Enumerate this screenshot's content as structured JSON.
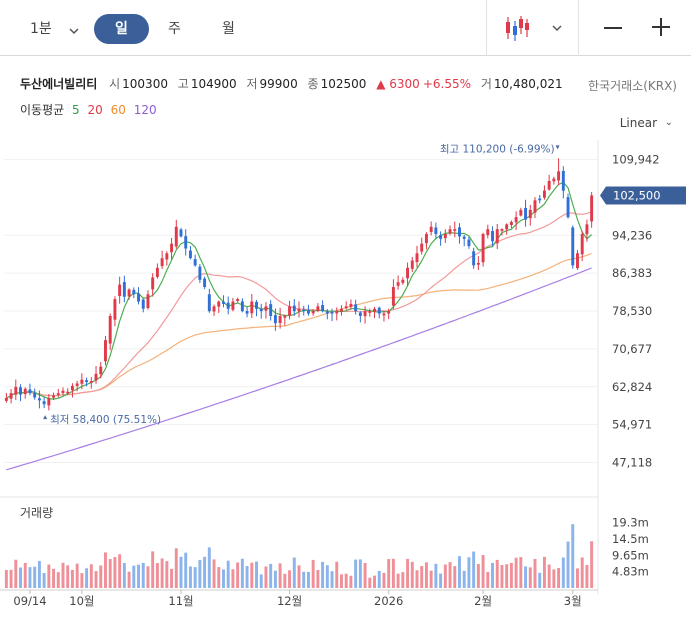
{
  "toolbar": {
    "minute_label": "1분",
    "day_label": "일",
    "week_label": "주",
    "month_label": "월",
    "active": "일"
  },
  "stock": {
    "name": "두산에너빌리티",
    "open_label": "시",
    "open": "100300",
    "high_label": "고",
    "high": "104900",
    "low_label": "저",
    "low": "99900",
    "close_label": "종",
    "close": "102500",
    "change": "▲ 6300",
    "change_pct": "+6.55%",
    "volume_label": "거",
    "volume": "10,480,021",
    "exchange": "한국거래소(KRX)"
  },
  "moving_averages": {
    "title": "이동평균",
    "items": [
      {
        "label": "5",
        "color": "#2ea043"
      },
      {
        "label": "20",
        "color": "#e0394a"
      },
      {
        "label": "60",
        "color": "#f08c28"
      },
      {
        "label": "120",
        "color": "#8b5cd6"
      }
    ]
  },
  "scale_label": "Linear",
  "colors": {
    "up": "#e0394a",
    "down": "#2f6fd6",
    "ma5": "#4caf50",
    "ma20": "#f29a9a",
    "ma60": "#f5b27a",
    "ma120": "#a77ee6",
    "vol_up": "#ef8f98",
    "vol_down": "#8ab4ea",
    "current_tag": "#3b5f99"
  },
  "chart_data": {
    "type": "candlestick",
    "title": "두산에너빌리티",
    "price_axis": {
      "ylim": [
        41000,
        114000
      ],
      "ticks": [
        "109,942",
        "94,236",
        "86,383",
        "78,530",
        "70,677",
        "62,824",
        "54,971",
        "47,118"
      ],
      "tick_values": [
        109942,
        94236,
        86383,
        78530,
        70677,
        62824,
        54971,
        47118
      ],
      "current_price_label": "102,500",
      "current_price": 102500
    },
    "x_axis": {
      "labels": [
        "09/14",
        "10월",
        "11월",
        "12월",
        "2026",
        "2월",
        "3월"
      ],
      "label_index": [
        5,
        16,
        37,
        60,
        81,
        101,
        120
      ]
    },
    "annotations": {
      "high_text": "최고 110,200 (-6.99%)",
      "high_value": 110200,
      "high_index": 117,
      "low_text": "최저 58,400 (75.51%)",
      "low_value": 58400,
      "low_index": 8
    },
    "candles_close": [
      60500,
      61500,
      62800,
      61200,
      62400,
      61500,
      60600,
      60000,
      59200,
      60500,
      61000,
      61500,
      62000,
      61800,
      63000,
      63500,
      64300,
      63800,
      64000,
      65500,
      67000,
      72500,
      77500,
      81000,
      84000,
      81500,
      83000,
      82000,
      80500,
      79000,
      82000,
      85500,
      87500,
      89500,
      90500,
      92500,
      96000,
      94000,
      91500,
      89500,
      88000,
      85000,
      83500,
      78500,
      79500,
      80500,
      80000,
      79000,
      80500,
      81000,
      78500,
      78000,
      80500,
      79000,
      78500,
      79500,
      77500,
      76000,
      77500,
      77500,
      79500,
      78500,
      79000,
      78500,
      78000,
      78500,
      79500,
      78500,
      78000,
      78000,
      78500,
      79000,
      79500,
      80000,
      78500,
      77500,
      78500,
      78500,
      79000,
      78000,
      78000,
      78500,
      83500,
      84500,
      85000,
      87500,
      89000,
      90500,
      92500,
      94500,
      96000,
      94500,
      93500,
      94500,
      95500,
      95500,
      94000,
      93500,
      92000,
      88000,
      88500,
      94500,
      95500,
      93000,
      95500,
      95500,
      96500,
      97000,
      98000,
      99500,
      97500,
      99500,
      101500,
      101500,
      103500,
      105500,
      106000,
      107500,
      103500,
      98000,
      88000,
      90500,
      94500,
      96500,
      102500
    ],
    "volume_axis": {
      "ticks": [
        "19.3m",
        "14.5m",
        "9.65m",
        "4.83m"
      ],
      "tick_values": [
        19.3,
        14.5,
        9.65,
        4.83
      ],
      "ylim": [
        0,
        26
      ],
      "label": "거래량"
    }
  }
}
